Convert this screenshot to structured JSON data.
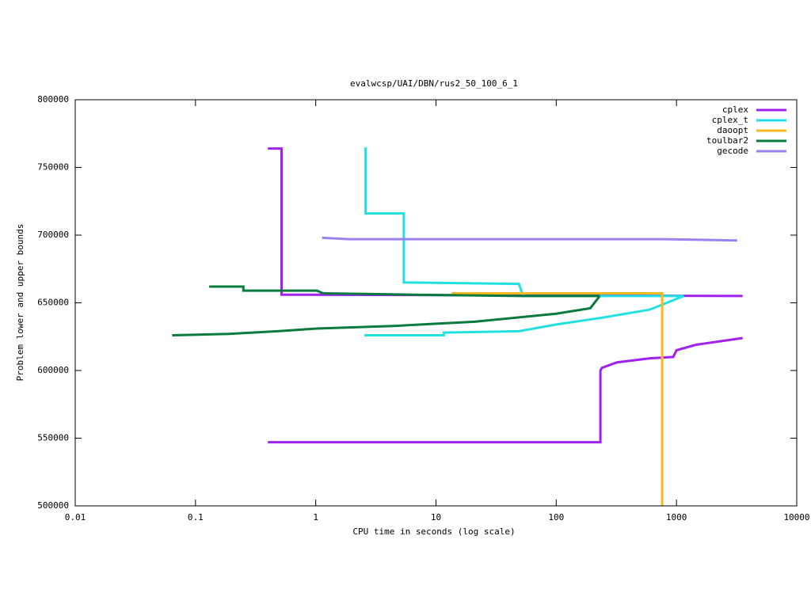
{
  "chart_data": {
    "type": "line",
    "title": "evalwcsp/UAI/DBN/rus2_50_100_6_1",
    "xlabel": "CPU time in seconds (log scale)",
    "ylabel": "Problem lower and upper bounds",
    "xlog": true,
    "xlim": [
      0.01,
      10000
    ],
    "xticks": [
      0.01,
      0.1,
      1,
      10,
      100,
      1000,
      10000
    ],
    "ylim": [
      500000,
      800000
    ],
    "yticks": [
      500000,
      550000,
      600000,
      650000,
      700000,
      750000,
      800000
    ],
    "legend": "top-right",
    "series": [
      {
        "name": "cplex",
        "color": "#a020f0",
        "x": [
          0.4,
          0.52,
          0.52,
          3550,
          null,
          0.4,
          233,
          233,
          240,
          320,
          600,
          940,
          1000,
          1450,
          3550
        ],
        "values": [
          764000,
          764000,
          656000,
          655000,
          null,
          547000,
          547000,
          600000,
          602000,
          606000,
          609000,
          610000,
          615000,
          619000,
          624000
        ]
      },
      {
        "name": "cplex_t",
        "color": "#22e0e0",
        "x": [
          2.54,
          2.6,
          2.6,
          5.4,
          5.4,
          49,
          53,
          1150,
          null,
          2.54,
          11.6,
          11.6,
          49,
          100,
          240,
          600,
          1150
        ],
        "values": [
          764000,
          764000,
          716000,
          716000,
          665000,
          664000,
          655000,
          655000,
          null,
          626000,
          626000,
          628000,
          629000,
          634000,
          639000,
          645000,
          655000
        ]
      },
      {
        "name": "daoopt",
        "color": "#f8b820",
        "x": [
          13.5,
          760,
          760
        ],
        "values": [
          657000,
          657000,
          500000
        ]
      },
      {
        "name": "toulbar2",
        "color": "#0b7a3e",
        "x": [
          0.13,
          0.25,
          0.25,
          1.02,
          1.15,
          6.3,
          53,
          230,
          null,
          0.064,
          0.19,
          0.48,
          1.02,
          4.65,
          21,
          100,
          192,
          230
        ],
        "values": [
          662000,
          662000,
          659000,
          659000,
          657000,
          656000,
          655000,
          655000,
          null,
          626000,
          627000,
          629000,
          631000,
          633000,
          636000,
          642000,
          646000,
          655000
        ]
      },
      {
        "name": "gecode",
        "color": "#9a80f0",
        "x": [
          1.13,
          1.9,
          800,
          3200
        ],
        "values": [
          698000,
          697000,
          697000,
          696000
        ]
      }
    ]
  }
}
